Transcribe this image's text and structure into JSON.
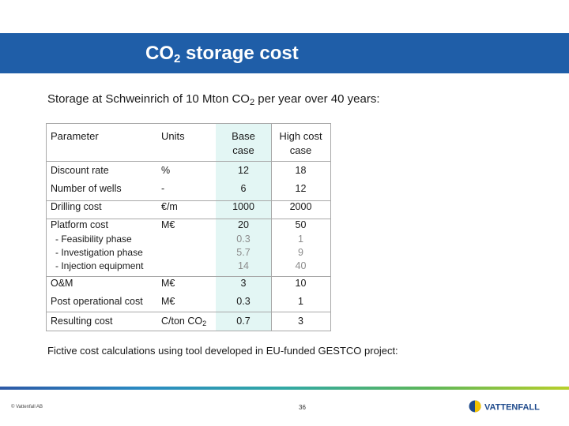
{
  "slide": {
    "title_prefix": "CO",
    "title_sub": "2",
    "title_suffix": " storage cost",
    "subtitle_prefix": "Storage at Schweinrich of 10 Mton CO",
    "subtitle_sub": "2",
    "subtitle_suffix": " per year over 40 years:",
    "note": "Fictive cost calculations using tool developed in EU-funded GESTCO project:"
  },
  "table": {
    "headers": {
      "parameter": "Parameter",
      "units": "Units",
      "base_line1": "Base",
      "base_line2": "case",
      "high_line1": "High cost",
      "high_line2": "case"
    },
    "rows": [
      {
        "parameter": "Discount rate",
        "units": "%",
        "base": "12",
        "high": "18"
      },
      {
        "parameter": "Number of wells",
        "units": "-",
        "base": "6",
        "high": "12"
      },
      {
        "parameter": "Drilling cost",
        "units": "€/m",
        "base": "1000",
        "high": "2000"
      },
      {
        "parameter": "Platform cost",
        "units": "M€",
        "base": "20",
        "high": "50"
      },
      {
        "parameter": "- Feasibility phase",
        "units": "",
        "base": "0.3",
        "high": "1"
      },
      {
        "parameter": "- Investigation phase",
        "units": "",
        "base": "5.7",
        "high": "9"
      },
      {
        "parameter": "- Injection equipment",
        "units": "",
        "base": "14",
        "high": "40"
      },
      {
        "parameter": "O&M",
        "units": "M€",
        "base": "3",
        "high": "10"
      },
      {
        "parameter": "Post operational cost",
        "units": "M€",
        "base": "0.3",
        "high": "1"
      }
    ],
    "result": {
      "parameter": "Resulting cost",
      "units_prefix": "C/ton CO",
      "units_sub": "2",
      "base": "0.7",
      "high": "3"
    }
  },
  "footer": {
    "copyright": "© Vattenfall AB",
    "page_number": "36",
    "logo_text": "VATTENFALL"
  },
  "colors": {
    "title_bar": "#1f5ea8",
    "base_case_shade": "#e3f6f4",
    "sub_item_value": "#8c8c8c",
    "logo_blue": "#1e4a8c",
    "logo_yellow": "#f2c200"
  }
}
